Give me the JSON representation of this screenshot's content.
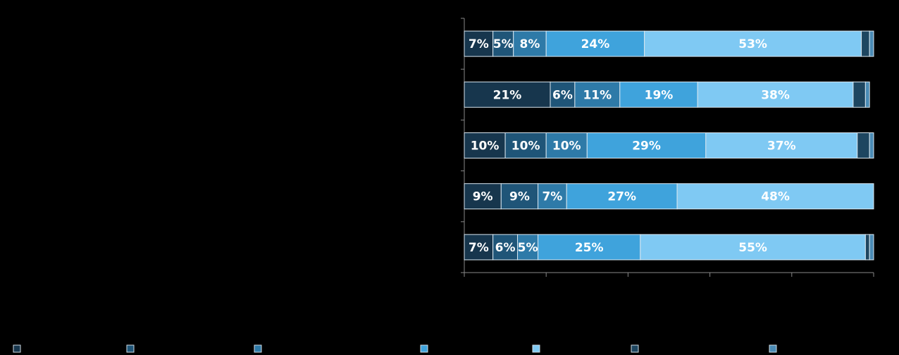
{
  "chart_data": {
    "type": "stacked-barh",
    "categories": [
      null,
      null,
      null,
      null,
      null
    ],
    "series": [
      {
        "color": "#17364d",
        "values": [
          7,
          21,
          10,
          9,
          7
        ],
        "value_labels": [
          "7%",
          "21%",
          "10%",
          "9%",
          "7%"
        ]
      },
      {
        "color": "#1f5578",
        "values": [
          5,
          6,
          10,
          9,
          6
        ],
        "value_labels": [
          "5%",
          "6%",
          "10%",
          "9%",
          "6%"
        ]
      },
      {
        "color": "#2e7aa8",
        "values": [
          8,
          11,
          10,
          7,
          5
        ],
        "value_labels": [
          "8%",
          "11%",
          "10%",
          "7%",
          "5%"
        ]
      },
      {
        "color": "#3fa3dc",
        "values": [
          24,
          19,
          29,
          27,
          25
        ],
        "value_labels": [
          "24%",
          "19%",
          "29%",
          "27%",
          "25%"
        ]
      },
      {
        "color": "#7fc9f3",
        "values": [
          53,
          38,
          37,
          48,
          55
        ],
        "value_labels": [
          "53%",
          "38%",
          "37%",
          "48%",
          "55%"
        ]
      },
      {
        "color": "#1e4660",
        "values": [
          2,
          3,
          3,
          null,
          1
        ],
        "value_labels": [
          null,
          null,
          null,
          null,
          null
        ]
      },
      {
        "color": "#4a8bb5",
        "values": [
          1,
          1,
          1,
          null,
          1
        ],
        "value_labels": [
          null,
          null,
          null,
          null,
          null
        ]
      }
    ],
    "xlim": [
      0,
      100
    ],
    "xticks": [
      0,
      20,
      40,
      60,
      80,
      100
    ]
  }
}
